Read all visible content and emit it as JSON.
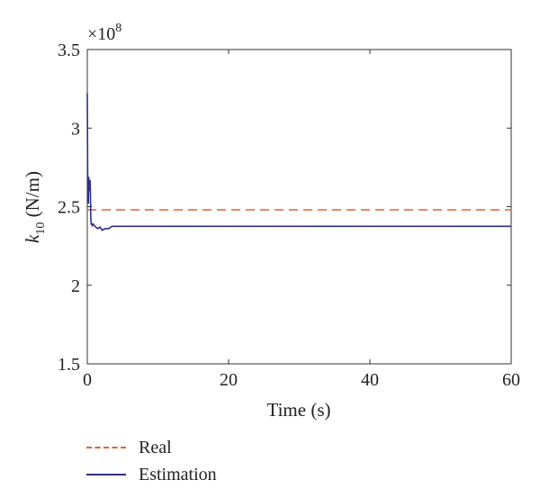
{
  "chart_data": {
    "type": "line",
    "xlabel": "Time (s)",
    "ylabel": {
      "var": "k",
      "sub": "10",
      "unit": " (N/m)"
    },
    "y_exponent_label": "×10",
    "y_exponent_power": "8",
    "xlim": [
      0,
      60
    ],
    "ylim": [
      1.5,
      3.5
    ],
    "x_ticks": [
      0,
      20,
      40,
      60
    ],
    "x_tick_labels": [
      "0",
      "20",
      "40",
      "60"
    ],
    "y_ticks": [
      1.5,
      2,
      2.5,
      3,
      3.5
    ],
    "y_tick_labels": [
      "1.5",
      "2",
      "2.5",
      "3",
      "3.5"
    ],
    "grid": false,
    "legend_position": "bottom-left",
    "series": [
      {
        "name": "Real",
        "color": "#e0622a",
        "style": "dashed",
        "x": [
          0,
          60
        ],
        "y": [
          2.48,
          2.48
        ]
      },
      {
        "name": "Estimation",
        "color": "#2e2e8c",
        "style": "solid",
        "x": [
          0,
          0.05,
          0.1,
          0.15,
          0.2,
          0.3,
          0.4,
          0.45,
          0.5,
          0.55,
          0.6,
          0.7,
          0.8,
          1.0,
          1.2,
          1.5,
          1.8,
          2.1,
          2.5,
          3.0,
          3.5,
          5,
          60
        ],
        "y": [
          3.22,
          2.75,
          2.55,
          2.52,
          2.69,
          2.6,
          2.67,
          2.56,
          2.42,
          2.39,
          2.39,
          2.38,
          2.39,
          2.38,
          2.37,
          2.36,
          2.37,
          2.35,
          2.36,
          2.36,
          2.375,
          2.375,
          2.375
        ]
      }
    ]
  }
}
